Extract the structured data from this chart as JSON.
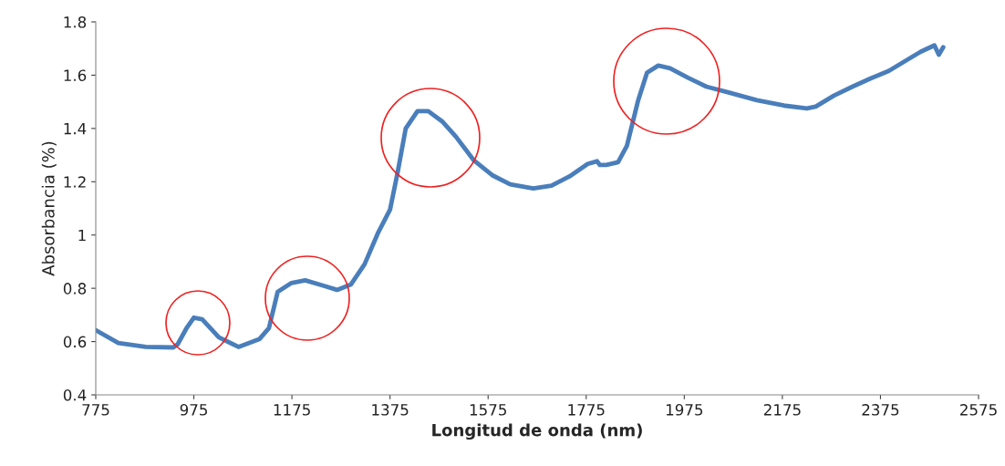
{
  "chart_data": {
    "type": "line",
    "xlabel": "Longitud de onda (nm)",
    "ylabel": "Absorbancia (%)",
    "xlim": [
      775,
      2575
    ],
    "xticks": [
      775,
      975,
      1175,
      1375,
      1575,
      1775,
      1975,
      2175,
      2375,
      2575
    ],
    "ylim": [
      0.4,
      1.8
    ],
    "yticks": [
      0.4,
      0.6,
      0.8,
      1,
      1.2,
      1.4,
      1.6,
      1.8
    ],
    "grid": false,
    "marker": "none",
    "line_style": "solid",
    "series": [
      {
        "color": "#4a7ebb",
        "x": [
          775,
          821,
          877,
          933,
          942,
          960,
          975,
          992,
          1026,
          1066,
          1109,
          1128,
          1146,
          1174,
          1202,
          1239,
          1267,
          1295,
          1323,
          1351,
          1375,
          1390,
          1407,
          1431,
          1453,
          1481,
          1509,
          1546,
          1583,
          1620,
          1667,
          1704,
          1741,
          1778,
          1797,
          1803,
          1816,
          1840,
          1858,
          1881,
          1899,
          1922,
          1946,
          1983,
          2020,
          2067,
          2123,
          2178,
          2225,
          2243,
          2280,
          2318,
          2355,
          2392,
          2429,
          2457,
          2485,
          2494,
          2503
        ],
        "values": [
          0.643,
          0.595,
          0.58,
          0.578,
          0.59,
          0.65,
          0.69,
          0.684,
          0.616,
          0.58,
          0.61,
          0.65,
          0.787,
          0.82,
          0.83,
          0.81,
          0.794,
          0.814,
          0.89,
          1.01,
          1.095,
          1.23,
          1.4,
          1.465,
          1.465,
          1.427,
          1.37,
          1.28,
          1.225,
          1.19,
          1.175,
          1.185,
          1.22,
          1.267,
          1.277,
          1.263,
          1.263,
          1.273,
          1.335,
          1.506,
          1.609,
          1.636,
          1.626,
          1.59,
          1.557,
          1.534,
          1.506,
          1.486,
          1.475,
          1.482,
          1.523,
          1.557,
          1.588,
          1.616,
          1.657,
          1.688,
          1.712,
          1.677,
          1.705
        ]
      }
    ]
  }
}
